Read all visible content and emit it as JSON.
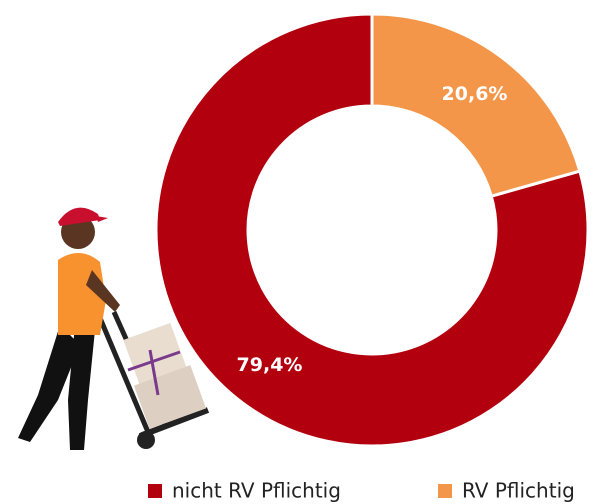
{
  "chart_data": {
    "type": "donut",
    "categories": [
      "nicht RV Pflichtig",
      "RV Pflichtig"
    ],
    "values": [
      79.4,
      20.6
    ],
    "value_labels": [
      "79,4%",
      "20,6%"
    ],
    "colors": [
      "#b3000e",
      "#f3964a"
    ],
    "legend": "bottom"
  }
}
